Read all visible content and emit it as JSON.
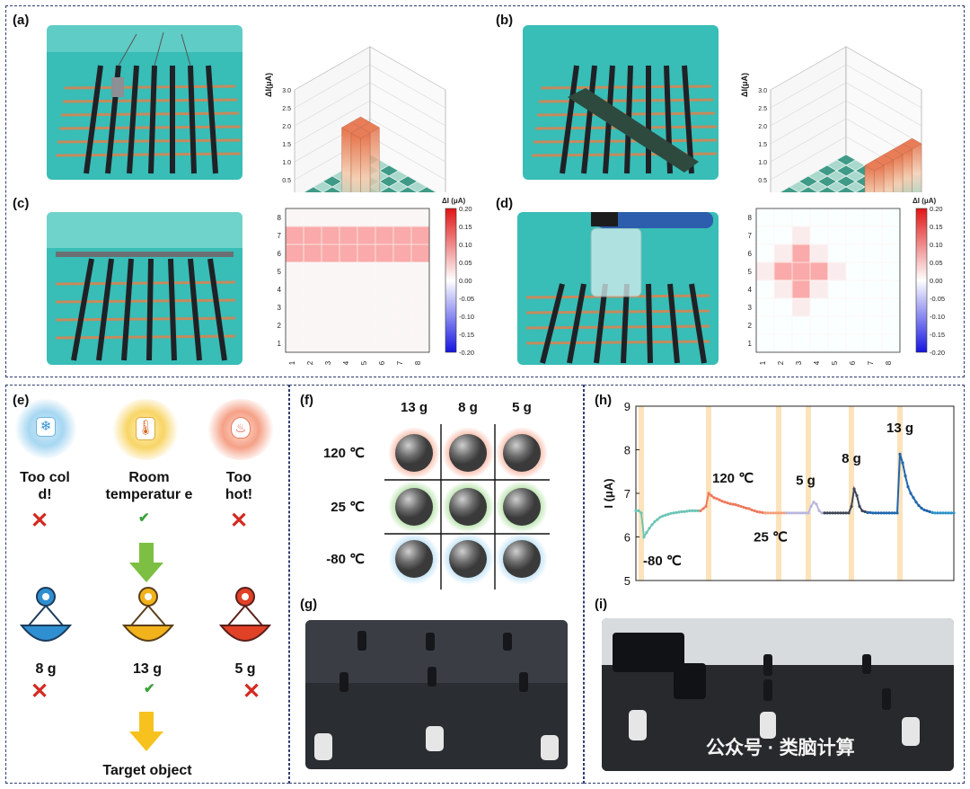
{
  "panels": {
    "a": "(a)",
    "b": "(b)",
    "c": "(c)",
    "d": "(d)",
    "e": "(e)",
    "f": "(f)",
    "g": "(g)",
    "h": "(h)",
    "i": "(i)"
  },
  "colors": {
    "border": "#2d3c6e",
    "photo_teal": "#33b8b4",
    "strip_black": "#1e2226",
    "cold_glow": "#a7d7f2",
    "room_glow": "#f8d567",
    "hot_glow": "#f5a187",
    "arrow_green": "#7cbf42",
    "arrow_yellow": "#f7c21e",
    "x_red": "#d42a20",
    "check_green": "#3aa13a"
  },
  "chart_data": [
    {
      "id": "a",
      "type": "bar3d",
      "ylabel": "ΔI(μA)",
      "zlim": [
        0,
        3.0
      ],
      "zticks": [
        "0.0",
        "0.5",
        "1.0",
        "1.5",
        "2.0",
        "2.5",
        "3.0"
      ],
      "grid": "8x8",
      "bars": [
        {
          "row": 6,
          "col": 5,
          "value": 2.4
        },
        {
          "row": 6,
          "col": 6,
          "value": 2.4
        },
        {
          "row": 7,
          "col": 5,
          "value": 2.4
        },
        {
          "row": 7,
          "col": 6,
          "value": 2.4
        }
      ]
    },
    {
      "id": "b",
      "type": "bar3d",
      "ylabel": "ΔI(μA)",
      "zlim": [
        0,
        3.0
      ],
      "zticks": [
        "0.0",
        "0.5",
        "1.0",
        "1.5",
        "2.0",
        "2.5",
        "3.0"
      ],
      "grid": "8x8",
      "bars": [
        {
          "row": 1,
          "col": 8,
          "value": 1.5
        },
        {
          "row": 2,
          "col": 8,
          "value": 1.5
        },
        {
          "row": 3,
          "col": 8,
          "value": 1.5
        },
        {
          "row": 4,
          "col": 8,
          "value": 1.5
        },
        {
          "row": 5,
          "col": 8,
          "value": 1.5
        }
      ]
    },
    {
      "id": "c",
      "type": "heatmap",
      "colorbar_label": "ΔI (μA)",
      "colorbar_ticks": [
        "0.20",
        "0.15",
        "0.10",
        "0.05",
        "0.00",
        "-0.05",
        "-0.10",
        "-0.15",
        "-0.20"
      ],
      "x": [
        "1",
        "2",
        "3",
        "4",
        "5",
        "6",
        "7",
        "8"
      ],
      "y": [
        "1",
        "2",
        "3",
        "4",
        "5",
        "6",
        "7",
        "8"
      ],
      "hot_cells": [
        [
          1,
          6
        ],
        [
          2,
          6
        ],
        [
          3,
          6
        ],
        [
          4,
          6
        ],
        [
          5,
          6
        ],
        [
          6,
          6
        ],
        [
          7,
          6
        ],
        [
          8,
          6
        ],
        [
          1,
          7
        ],
        [
          2,
          7
        ],
        [
          3,
          7
        ],
        [
          4,
          7
        ],
        [
          5,
          7
        ],
        [
          6,
          7
        ],
        [
          7,
          7
        ],
        [
          8,
          7
        ]
      ],
      "hot_value": 0.09,
      "base_value": 0.01
    },
    {
      "id": "d",
      "type": "heatmap",
      "colorbar_label": "ΔI (μA)",
      "colorbar_ticks": [
        "0.20",
        "0.15",
        "0.10",
        "0.05",
        "0.00",
        "-0.05",
        "-0.10",
        "-0.15",
        "-0.20"
      ],
      "x": [
        "1",
        "2",
        "3",
        "4",
        "5",
        "6",
        "7",
        "8"
      ],
      "y": [
        "1",
        "2",
        "3",
        "4",
        "5",
        "6",
        "7",
        "8"
      ],
      "hot_cells": [
        [
          3,
          6
        ],
        [
          2,
          5
        ],
        [
          3,
          5
        ],
        [
          4,
          5
        ],
        [
          3,
          4
        ]
      ],
      "warm_cells": [
        [
          2,
          6
        ],
        [
          4,
          6
        ],
        [
          2,
          4
        ],
        [
          4,
          4
        ],
        [
          1,
          5
        ],
        [
          5,
          5
        ],
        [
          3,
          3
        ],
        [
          3,
          7
        ]
      ],
      "hot_value": 0.09,
      "warm_value": 0.02,
      "base_value": 0.0
    },
    {
      "id": "h",
      "type": "line",
      "ylabel": "I (μA)",
      "ylim": [
        5,
        9
      ],
      "yticks": [
        "5",
        "6",
        "7",
        "8",
        "9"
      ],
      "annotations": [
        "-80 ℃",
        "120 ℃",
        "25 ℃",
        "5 g",
        "8 g",
        "13 g"
      ],
      "series": [
        {
          "color": "#6cc5b5",
          "x": [
            0,
            1,
            2,
            3,
            4,
            5,
            6,
            7,
            8,
            9,
            10,
            11,
            12,
            13,
            14,
            15,
            16,
            17,
            18,
            19,
            20,
            21,
            22,
            23,
            24
          ],
          "y": [
            6.6,
            6.6,
            6.55,
            6.0,
            6.1,
            6.2,
            6.28,
            6.35,
            6.4,
            6.45,
            6.48,
            6.5,
            6.52,
            6.54,
            6.55,
            6.56,
            6.57,
            6.58,
            6.58,
            6.59,
            6.6,
            6.6,
            6.6,
            6.6,
            6.6
          ]
        },
        {
          "color": "#ee7a5e",
          "x": [
            24,
            25,
            26,
            27,
            28,
            29,
            30,
            31,
            32,
            33,
            34,
            35,
            36,
            37,
            38,
            39,
            40,
            41,
            42,
            43,
            44,
            45,
            46,
            47,
            48
          ],
          "y": [
            6.6,
            6.65,
            6.7,
            7.0,
            6.95,
            6.9,
            6.88,
            6.85,
            6.82,
            6.8,
            6.78,
            6.76,
            6.75,
            6.74,
            6.72,
            6.7,
            6.68,
            6.66,
            6.65,
            6.62,
            6.6,
            6.58,
            6.57,
            6.56,
            6.55
          ]
        },
        {
          "color": "#f2a07a",
          "x": [
            48,
            49,
            50,
            51,
            52,
            53,
            54,
            55,
            56
          ],
          "y": [
            6.55,
            6.55,
            6.55,
            6.55,
            6.55,
            6.55,
            6.55,
            6.55,
            6.55
          ]
        },
        {
          "color": "#b9b6e0",
          "x": [
            56,
            57,
            58,
            59,
            60,
            61,
            62,
            63,
            64,
            65,
            66,
            67,
            68,
            69,
            70
          ],
          "y": [
            6.55,
            6.55,
            6.55,
            6.55,
            6.55,
            6.55,
            6.55,
            6.55,
            6.55,
            6.7,
            6.8,
            6.75,
            6.6,
            6.55,
            6.55
          ]
        },
        {
          "color": "#3e4656",
          "x": [
            70,
            71,
            72,
            73,
            74,
            75,
            76,
            77,
            78,
            79,
            80,
            81,
            82,
            83,
            84,
            85,
            86
          ],
          "y": [
            6.55,
            6.55,
            6.55,
            6.55,
            6.55,
            6.55,
            6.55,
            6.55,
            6.55,
            6.55,
            6.7,
            7.1,
            6.95,
            6.7,
            6.6,
            6.58,
            6.56
          ]
        },
        {
          "color": "#2166ac",
          "x": [
            86,
            87,
            88,
            89,
            90,
            91,
            92,
            93,
            94,
            95,
            96,
            97,
            98,
            99,
            100,
            101,
            102,
            103,
            104,
            105,
            106,
            107,
            108,
            109,
            110
          ],
          "y": [
            6.56,
            6.56,
            6.55,
            6.55,
            6.55,
            6.55,
            6.55,
            6.55,
            6.55,
            6.55,
            6.55,
            6.55,
            7.9,
            7.7,
            7.4,
            7.15,
            7.0,
            6.9,
            6.8,
            6.72,
            6.66,
            6.62,
            6.6,
            6.58,
            6.56
          ]
        },
        {
          "color": "#2f93c8",
          "x": [
            110,
            111,
            112,
            113,
            114,
            115,
            116,
            117,
            118
          ],
          "y": [
            6.56,
            6.55,
            6.55,
            6.55,
            6.55,
            6.55,
            6.55,
            6.55,
            6.55
          ]
        }
      ],
      "highlights_x": [
        2,
        27,
        53,
        64,
        80,
        98
      ]
    },
    {
      "id": "f",
      "type": "table",
      "columns": [
        "13 g",
        "8 g",
        "5 g"
      ],
      "rows": [
        "120 ℃",
        "25 ℃",
        "-80 ℃"
      ]
    }
  ],
  "panel_e": {
    "temps": [
      {
        "label": "Too col d!",
        "icon": "snowflake-icon",
        "mark": "x"
      },
      {
        "label": "Room temperatur e",
        "icon": "thermometer-icon",
        "mark": "check"
      },
      {
        "label": "Too hot!",
        "icon": "flame-icon",
        "mark": "x"
      }
    ],
    "weights": [
      {
        "label": "8 g",
        "color": "#2f8fd1",
        "mark": "x"
      },
      {
        "label": "13 g",
        "color": "#f1b21c",
        "mark": "check"
      },
      {
        "label": "5 g",
        "color": "#e04127",
        "mark": "x"
      }
    ],
    "target_label": "Target object"
  },
  "watermark": "公众号 · 类脑计算"
}
